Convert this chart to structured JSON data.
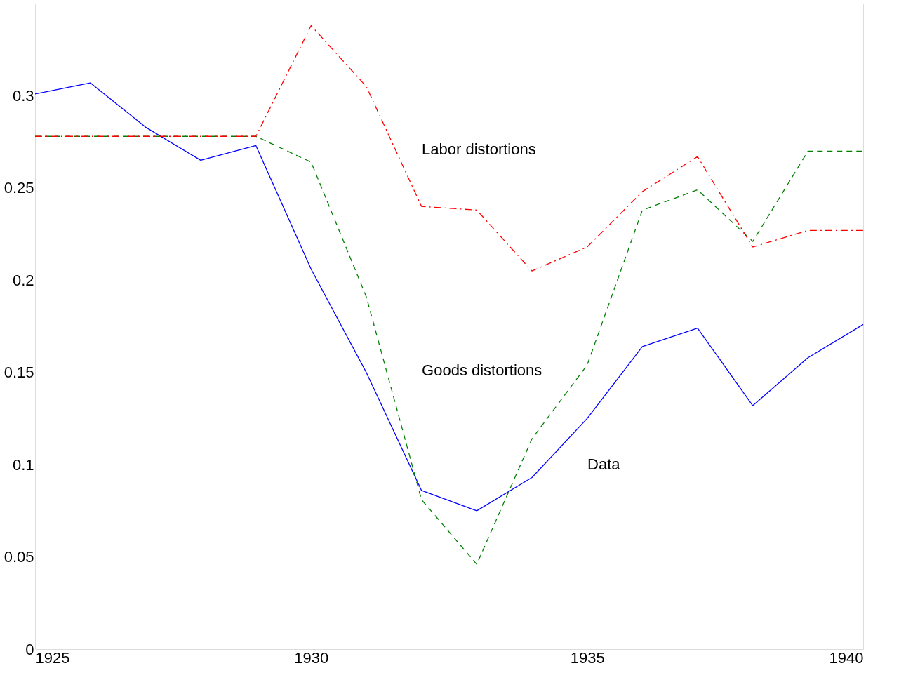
{
  "chart_data": {
    "type": "line",
    "x": [
      1925,
      1926,
      1927,
      1928,
      1929,
      1930,
      1931,
      1932,
      1933,
      1934,
      1935,
      1936,
      1937,
      1938,
      1939,
      1940
    ],
    "series": [
      {
        "color": "#0000ff",
        "line_style": "solid",
        "values": [
          0.301,
          0.307,
          0.283,
          0.265,
          0.273,
          0.206,
          0.15,
          0.086,
          0.075,
          0.093,
          0.125,
          0.164,
          0.174,
          0.132,
          0.158,
          0.176
        ]
      },
      {
        "color": "#007f00",
        "line_style": "dashed",
        "values": [
          0.278,
          0.278,
          0.278,
          0.278,
          0.278,
          0.264,
          0.191,
          0.081,
          0.046,
          0.114,
          0.154,
          0.238,
          0.249,
          0.221,
          0.27,
          0.27
        ]
      },
      {
        "color": "#ff0000",
        "line_style": "dashdot",
        "values": [
          0.278,
          0.278,
          0.278,
          0.278,
          0.278,
          0.338,
          0.305,
          0.24,
          0.238,
          0.205,
          0.218,
          0.248,
          0.267,
          0.218,
          0.227,
          0.227
        ]
      }
    ],
    "annotations": [
      "Labor distortions",
      "Goods distortions",
      "Data"
    ],
    "xlim": [
      1925,
      1940
    ],
    "xticks": [
      1925,
      1930,
      1935,
      1940
    ],
    "ylim": [
      0,
      0.35
    ],
    "yticks": [
      0,
      0.05,
      0.1,
      0.15,
      0.2,
      0.25,
      0.3
    ],
    "grid": false,
    "marker": "none"
  }
}
